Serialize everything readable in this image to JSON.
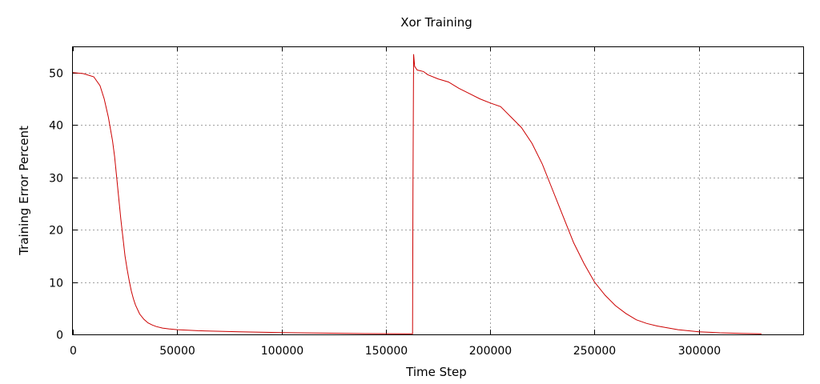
{
  "chart_data": {
    "type": "line",
    "title": "Xor Training",
    "xlabel": "Time Step",
    "ylabel": "Training Error Percent",
    "xlim": [
      0,
      350000
    ],
    "ylim": [
      0,
      55
    ],
    "x_ticks": [
      0,
      50000,
      100000,
      150000,
      200000,
      250000,
      300000
    ],
    "y_ticks": [
      0,
      10,
      20,
      30,
      40,
      50
    ],
    "x_tick_labels": [
      "0",
      "50000",
      "100000",
      "150000",
      "200000",
      "250000",
      "300000"
    ],
    "y_tick_labels": [
      "0",
      "10",
      "20",
      "30",
      "40",
      "50"
    ],
    "grid": true,
    "series": [
      {
        "color": "#cc0000",
        "x": [
          0,
          5000,
          10000,
          13000,
          15000,
          17000,
          19000,
          20000,
          21000,
          22000,
          23000,
          24000,
          25000,
          26000,
          27000,
          28000,
          29000,
          30000,
          32000,
          34000,
          36000,
          38000,
          40000,
          43000,
          46000,
          50000,
          60000,
          80000,
          100000,
          120000,
          140000,
          160000,
          162000,
          162800,
          163000,
          163300,
          163800,
          165000,
          168000,
          170000,
          175000,
          180000,
          185000,
          190000,
          195000,
          200000,
          205000,
          210000,
          215000,
          220000,
          225000,
          230000,
          235000,
          240000,
          245000,
          250000,
          255000,
          260000,
          265000,
          270000,
          275000,
          280000,
          290000,
          300000,
          310000,
          320000,
          330000
        ],
        "y": [
          50,
          49.8,
          49.2,
          47.5,
          45,
          41.5,
          37,
          34,
          30,
          26,
          22,
          18.5,
          15,
          12.5,
          10.2,
          8.3,
          6.8,
          5.6,
          3.9,
          2.9,
          2.2,
          1.8,
          1.5,
          1.2,
          1.05,
          0.9,
          0.7,
          0.5,
          0.35,
          0.25,
          0.15,
          0.1,
          0.1,
          0.1,
          27,
          53.5,
          51.2,
          50.5,
          50.2,
          49.6,
          48.8,
          48.2,
          47,
          46,
          45,
          44.2,
          43.5,
          41.5,
          39.5,
          36.5,
          32.5,
          27.5,
          22.5,
          17.5,
          13.5,
          10,
          7.5,
          5.5,
          4,
          2.8,
          2.1,
          1.6,
          0.9,
          0.5,
          0.3,
          0.2,
          0.1
        ]
      }
    ]
  }
}
